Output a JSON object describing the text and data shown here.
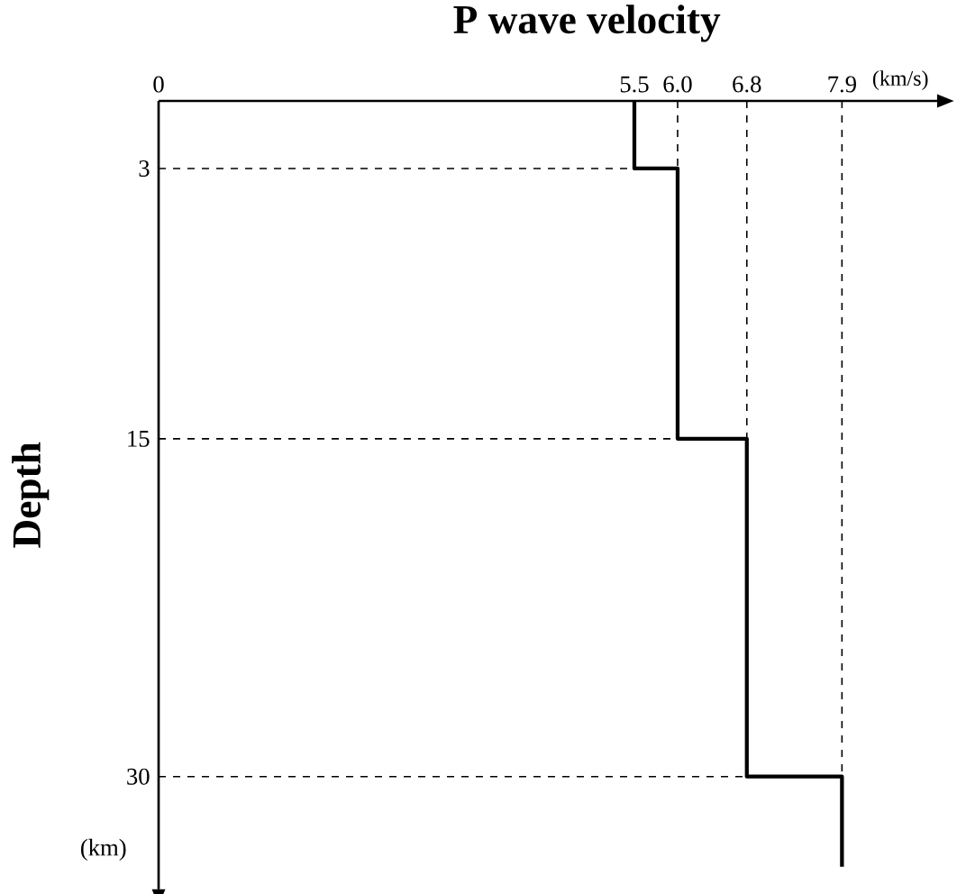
{
  "chart_data": {
    "type": "line",
    "title": "P wave velocity",
    "xlabel": "(km/s)",
    "ylabel": "Depth",
    "annotations": [
      "(km)"
    ],
    "series": [
      {
        "x": [
          5.5,
          5.5,
          6.0,
          6.0,
          6.8,
          6.8,
          7.9,
          7.9
        ],
        "values": [
          0,
          3,
          3,
          15,
          15,
          30,
          30,
          34
        ],
        "color": "#000000"
      }
    ],
    "xlim": [
      0,
      9
    ],
    "ylim": [
      35,
      0
    ],
    "xticks": [
      0,
      5.5,
      {
        "value": 6.0,
        "label": "6.0"
      },
      6.8,
      7.9
    ],
    "yticks": [
      3,
      15,
      30
    ],
    "ref_lines": [
      {
        "axis": "y",
        "value": 3,
        "line_style": "dashed"
      },
      {
        "axis": "y",
        "value": 15,
        "line_style": "dashed"
      },
      {
        "axis": "y",
        "value": 30,
        "line_style": "dashed"
      },
      {
        "axis": "x",
        "value": 6.0,
        "line_style": "dashed"
      },
      {
        "axis": "x",
        "value": 6.8,
        "line_style": "dashed"
      },
      {
        "axis": "x",
        "value": 7.9,
        "line_style": "dashed"
      }
    ],
    "line_style": "solid"
  }
}
